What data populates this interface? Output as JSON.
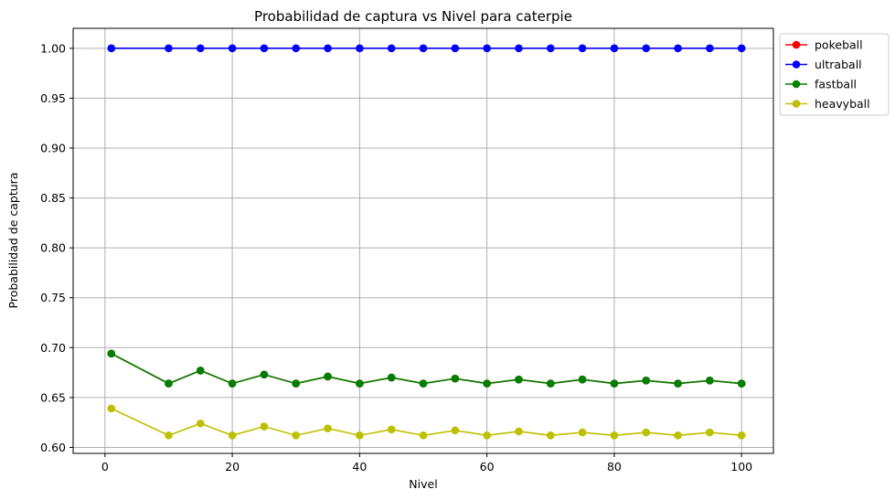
{
  "chart_data": {
    "type": "line",
    "title": "Probabilidad de captura vs Nivel para caterpie",
    "xlabel": "Nivel",
    "ylabel": "Probabilidad de captura",
    "xlim": [
      -5,
      105
    ],
    "ylim": [
      0.594,
      1.02
    ],
    "xticks": [
      0,
      20,
      40,
      60,
      80,
      100
    ],
    "xtick_labels": [
      "0",
      "20",
      "40",
      "60",
      "80",
      "100"
    ],
    "yticks": [
      0.6,
      0.65,
      0.7,
      0.75,
      0.8,
      0.85,
      0.9,
      0.95,
      1.0
    ],
    "ytick_labels": [
      "0.60",
      "0.65",
      "0.70",
      "0.75",
      "0.80",
      "0.85",
      "0.90",
      "0.95",
      "1.00"
    ],
    "grid": true,
    "legend_position": "outside-top-right",
    "x": [
      1,
      10,
      15,
      20,
      25,
      30,
      35,
      40,
      45,
      50,
      55,
      60,
      65,
      70,
      75,
      80,
      85,
      90,
      95,
      100
    ],
    "series": [
      {
        "name": "pokeball",
        "color": "#ff0000",
        "values": [
          0.694,
          0.664,
          0.677,
          0.664,
          0.673,
          0.664,
          0.671,
          0.664,
          0.67,
          0.664,
          0.669,
          0.664,
          0.668,
          0.664,
          0.668,
          0.664,
          0.667,
          0.664,
          0.667,
          0.664
        ]
      },
      {
        "name": "ultraball",
        "color": "#0000ff",
        "values": [
          1.0,
          1.0,
          1.0,
          1.0,
          1.0,
          1.0,
          1.0,
          1.0,
          1.0,
          1.0,
          1.0,
          1.0,
          1.0,
          1.0,
          1.0,
          1.0,
          1.0,
          1.0,
          1.0,
          1.0
        ]
      },
      {
        "name": "fastball",
        "color": "#008000",
        "values": [
          0.694,
          0.664,
          0.677,
          0.664,
          0.673,
          0.664,
          0.671,
          0.664,
          0.67,
          0.664,
          0.669,
          0.664,
          0.668,
          0.664,
          0.668,
          0.664,
          0.667,
          0.664,
          0.667,
          0.664
        ]
      },
      {
        "name": "heavyball",
        "color": "#bfbf00",
        "values": [
          0.639,
          0.612,
          0.624,
          0.612,
          0.621,
          0.612,
          0.619,
          0.612,
          0.618,
          0.612,
          0.617,
          0.612,
          0.616,
          0.612,
          0.615,
          0.612,
          0.615,
          0.612,
          0.615,
          0.612
        ]
      }
    ]
  }
}
